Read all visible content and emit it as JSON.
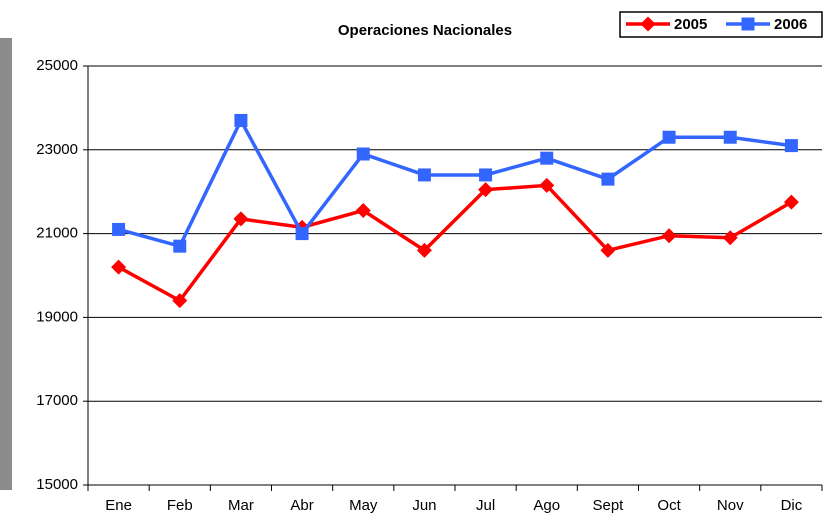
{
  "chart_data": {
    "type": "line",
    "title": "Operaciones Nacionales",
    "categories": [
      "Ene",
      "Feb",
      "Mar",
      "Abr",
      "May",
      "Jun",
      "Jul",
      "Ago",
      "Sept",
      "Oct",
      "Nov",
      "Dic"
    ],
    "series": [
      {
        "name": "2005",
        "color": "#ff0000",
        "marker": "diamond",
        "values": [
          20200,
          19400,
          21350,
          21150,
          21550,
          20600,
          22050,
          22150,
          20600,
          20950,
          20900,
          21750
        ]
      },
      {
        "name": "2006",
        "color": "#3366ff",
        "marker": "square",
        "values": [
          21100,
          20700,
          23700,
          21000,
          22900,
          22400,
          22400,
          22800,
          22300,
          23300,
          23300,
          23100
        ]
      }
    ],
    "ylim": [
      15000,
      25000
    ],
    "yticks": [
      15000,
      17000,
      19000,
      21000,
      23000,
      25000
    ],
    "grid": true,
    "legend": "top-right"
  }
}
